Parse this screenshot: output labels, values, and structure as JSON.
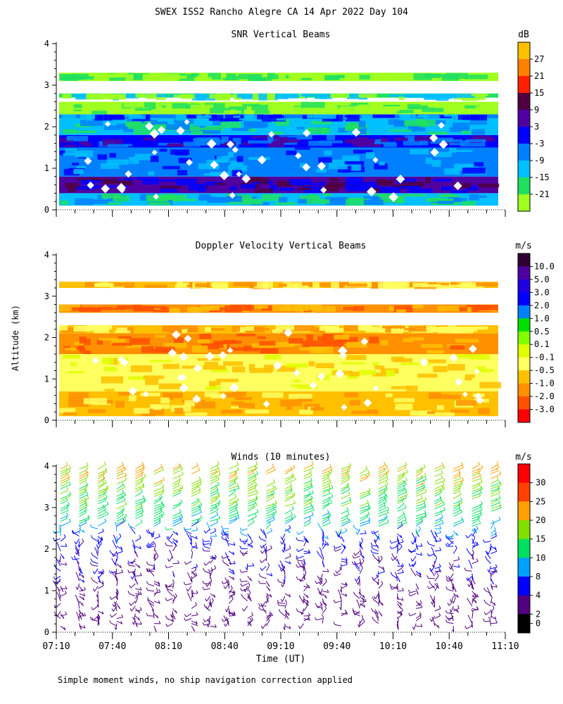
{
  "chart_data": {
    "title": "SWEX ISS2 Rancho Alegre CA  14 Apr 2022 Day 104",
    "ylabel": "Altitude (km)",
    "xlabel": "Time (UT)",
    "footnote": "Simple moment winds, no ship navigation correction applied",
    "x_ticks": [
      "07:10",
      "07:40",
      "08:10",
      "08:40",
      "09:10",
      "09:40",
      "10:10",
      "10:40",
      "11:10"
    ],
    "y_ticks": [
      "0",
      "1",
      "2",
      "3",
      "4"
    ],
    "ylim": [
      0,
      4
    ],
    "panels": [
      {
        "type": "heatmap",
        "title": "SNR Vertical Beams",
        "unit": "dB",
        "colorbar_labels": [
          "27",
          "21",
          "15",
          "9",
          "3",
          "-3",
          "-9",
          "-15",
          "-21"
        ],
        "colorbar_colors": [
          "#ffc000",
          "#ff8000",
          "#ff2000",
          "#500040",
          "#5000a0",
          "#0000ff",
          "#0080ff",
          "#00c0ff",
          "#20e060",
          "#a0ff20"
        ],
        "bands": [
          {
            "bottom": 0.1,
            "top": 0.4,
            "level": "-9"
          },
          {
            "bottom": 0.4,
            "top": 0.8,
            "level": "9"
          },
          {
            "bottom": 0.8,
            "top": 1.5,
            "level": "-3"
          },
          {
            "bottom": 1.5,
            "top": 1.8,
            "level": "3"
          },
          {
            "bottom": 1.8,
            "top": 2.2,
            "level": "-9"
          },
          {
            "bottom": 2.2,
            "top": 2.3,
            "level": "-3"
          },
          {
            "bottom": 2.3,
            "top": 2.6,
            "level": "-21"
          },
          {
            "bottom": 2.7,
            "top": 2.8,
            "level": "-15"
          },
          {
            "bottom": 3.1,
            "top": 3.3,
            "level": "-21"
          }
        ]
      },
      {
        "type": "heatmap",
        "title": "Doppler Velocity Vertical Beams",
        "unit": "m/s",
        "colorbar_labels": [
          "10.0",
          "5.0",
          "3.0",
          "2.0",
          "1.0",
          "0.5",
          "0.1",
          "-0.1",
          "-0.5",
          "-1.0",
          "-2.0",
          "-3.0"
        ],
        "colorbar_colors": [
          "#300030",
          "#5000a0",
          "#2000e0",
          "#0000ff",
          "#0080ff",
          "#00e000",
          "#80ff00",
          "#e0ff00",
          "#ffff60",
          "#ffc000",
          "#ff9000",
          "#ff5000",
          "#ff0000"
        ],
        "bands": [
          {
            "bottom": 0.1,
            "top": 0.7,
            "level": "-0.5"
          },
          {
            "bottom": 0.7,
            "top": 1.6,
            "level": "-0.1"
          },
          {
            "bottom": 1.6,
            "top": 2.1,
            "level": "-1.0"
          },
          {
            "bottom": 2.1,
            "top": 2.3,
            "level": "-0.5"
          },
          {
            "bottom": 2.6,
            "top": 2.8,
            "level": "-1.0"
          },
          {
            "bottom": 3.2,
            "top": 3.35,
            "level": "-0.5"
          }
        ]
      },
      {
        "type": "wind_barbs",
        "title": "Winds (10 minutes)",
        "unit": "m/s",
        "colorbar_labels": [
          "30",
          "25",
          "20",
          "15",
          "10",
          "8",
          "4",
          "2",
          "0"
        ],
        "colorbar_colors": [
          "#ff0000",
          "#ff4000",
          "#ffa000",
          "#80e000",
          "#00e060",
          "#00a0ff",
          "#0000ff",
          "#500080",
          "#000000"
        ],
        "profile_times": [
          "07:10",
          "07:20",
          "07:30",
          "07:40",
          "07:50",
          "08:00",
          "08:10",
          "08:20",
          "08:30",
          "08:40",
          "08:50",
          "09:00",
          "09:10",
          "09:20",
          "09:30",
          "09:40",
          "09:50",
          "10:00",
          "10:10",
          "10:20",
          "10:30",
          "10:40",
          "10:50",
          "11:00"
        ],
        "speed_by_altitude_km": [
          {
            "altitude": 0.5,
            "speed_ms": 3
          },
          {
            "altitude": 1.0,
            "speed_ms": 3
          },
          {
            "altitude": 1.5,
            "speed_ms": 4
          },
          {
            "altitude": 2.0,
            "speed_ms": 4
          },
          {
            "altitude": 2.5,
            "speed_ms": 9
          },
          {
            "altitude": 3.0,
            "speed_ms": 14
          },
          {
            "altitude": 3.5,
            "speed_ms": 17
          },
          {
            "altitude": 3.9,
            "speed_ms": 20
          }
        ]
      }
    ]
  }
}
